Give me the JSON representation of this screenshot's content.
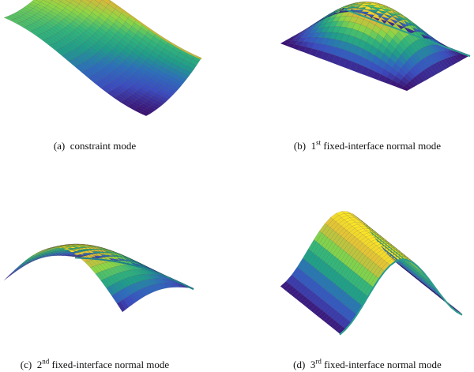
{
  "colormap": [
    "#3b0f70",
    "#3b4cc0",
    "#2c6fbb",
    "#1f9e89",
    "#35b779",
    "#8fd744",
    "#d8b83a",
    "#fde725"
  ],
  "panels": [
    {
      "id": "a",
      "tag": "(a)",
      "caption_pre": "constraint mode",
      "caption_sup": "",
      "caption_post": ""
    },
    {
      "id": "b",
      "tag": "(b)",
      "caption_pre": "1",
      "caption_sup": "st",
      "caption_post": " fixed-interface normal mode"
    },
    {
      "id": "c",
      "tag": "(c)",
      "caption_pre": "2",
      "caption_sup": "nd",
      "caption_post": " fixed-interface normal mode"
    },
    {
      "id": "d",
      "tag": "(d)",
      "caption_pre": "3",
      "caption_sup": "rd",
      "caption_post": " fixed-interface normal mode"
    }
  ]
}
